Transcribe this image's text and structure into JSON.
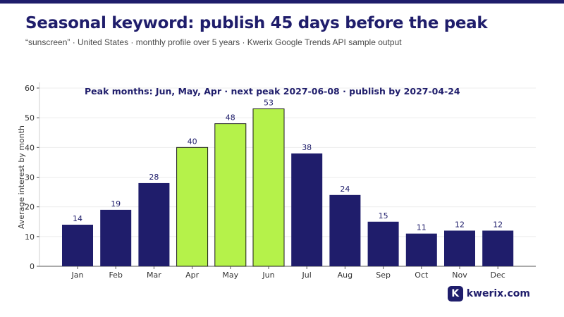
{
  "header": {
    "title": "Seasonal keyword: publish 45 days before the peak",
    "subtitle": "“sunscreen” · United States · monthly profile over 5 years · Kwerix Google Trends API sample output"
  },
  "brand": {
    "mark": "K",
    "name": "kwerix.com"
  },
  "colors": {
    "base": "#1f1d6b",
    "peak": "#b5f24a",
    "text": "#1f1d6b",
    "grid": "#ececec"
  },
  "chart_data": {
    "type": "bar",
    "annotation": "Peak months: Jun, May, Apr · next peak 2027-06-08 · publish by 2027-04-24",
    "ylabel": "Average interest by month",
    "xlabel": "",
    "ylim": [
      0,
      60
    ],
    "yticks": [
      0,
      10,
      20,
      30,
      40,
      50,
      60
    ],
    "grid": true,
    "categories": [
      "Jan",
      "Feb",
      "Mar",
      "Apr",
      "May",
      "Jun",
      "Jul",
      "Aug",
      "Sep",
      "Oct",
      "Nov",
      "Dec"
    ],
    "values": [
      14,
      19,
      28,
      40,
      48,
      53,
      38,
      24,
      15,
      11,
      12,
      12
    ],
    "data_labels": [
      "14",
      "19",
      "28",
      "40",
      "48",
      "53",
      "38",
      "24",
      "15",
      "11",
      "12",
      "12"
    ],
    "peak_months": [
      "Apr",
      "May",
      "Jun"
    ]
  }
}
